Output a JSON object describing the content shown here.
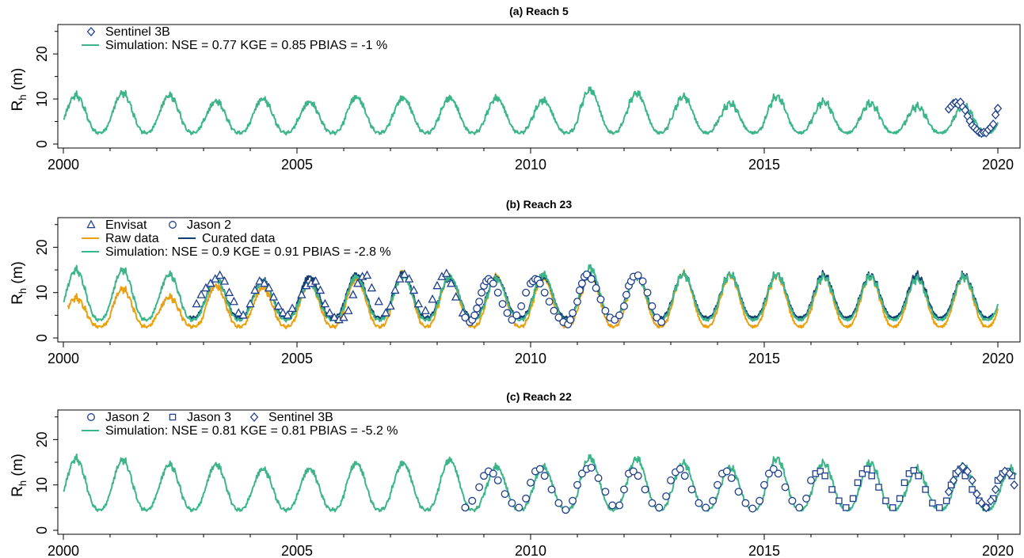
{
  "colors": {
    "simulation": "#3cb689",
    "raw": "#e9a10f",
    "curated": "#123f73",
    "marker": "#1e3f8c"
  },
  "chart_data": [
    {
      "type": "line",
      "title": "(a) Reach 5",
      "ylabel": "R",
      "ylabel_sub": "h",
      "ylabel_unit": " (m)",
      "xlim": [
        2000,
        2020.4
      ],
      "ylim": [
        0,
        26
      ],
      "xticks": [
        "2000",
        "2005",
        "2010",
        "2015",
        "2020"
      ],
      "yticks": [
        "0",
        "10",
        "20"
      ],
      "grid": false,
      "legend_position": "top-left",
      "legend": [
        {
          "label": "Sentinel 3B",
          "kind": "marker",
          "marker": "diamond"
        },
        {
          "label": "Simulation: NSE = 0.77  KGE = 0.85  PBIAS = -1 %",
          "kind": "line",
          "series": "simulation"
        }
      ],
      "series": [
        {
          "name": "Simulation",
          "kind": "line",
          "color": "simulation",
          "pattern": {
            "start": 2000.0,
            "end": 2020.0,
            "trough": 2.5,
            "peaks": [
              10.8,
              11.3,
              10.8,
              9.5,
              10.0,
              9.3,
              10.4,
              10.2,
              10.2,
              10.2,
              9.7,
              12.0,
              11.3,
              10.5,
              9.0,
              10.5,
              9.4,
              9.0,
              8.3,
              8.5
            ]
          }
        },
        {
          "name": "Sentinel 3B",
          "kind": "points",
          "marker": "diamond",
          "x": [
            2018.95,
            2019.0,
            2019.05,
            2019.1,
            2019.15,
            2019.2,
            2019.25,
            2019.3,
            2019.35,
            2019.4,
            2019.45,
            2019.5,
            2019.55,
            2019.6,
            2019.65,
            2019.7,
            2019.75,
            2019.8,
            2019.85,
            2019.9,
            2019.95,
            2020.0
          ],
          "y": [
            7.8,
            8.4,
            9.0,
            9.2,
            8.8,
            9.3,
            8.2,
            7.5,
            6.2,
            5.1,
            4.1,
            3.6,
            3.1,
            2.6,
            2.4,
            2.6,
            2.5,
            3.2,
            3.7,
            4.4,
            6.5,
            7.9
          ]
        }
      ]
    },
    {
      "type": "line",
      "title": "(b) Reach 23",
      "ylabel": "R",
      "ylabel_sub": "h",
      "ylabel_unit": " (m)",
      "xlim": [
        2000,
        2020.4
      ],
      "ylim": [
        0,
        26
      ],
      "xticks": [
        "2000",
        "2005",
        "2010",
        "2015",
        "2020"
      ],
      "yticks": [
        "0",
        "10",
        "20"
      ],
      "grid": false,
      "legend_position": "top-left",
      "legend": [
        {
          "label": "Envisat",
          "kind": "marker",
          "marker": "triangle"
        },
        {
          "label": "Jason 2",
          "kind": "marker",
          "marker": "circle"
        },
        {
          "label": "Raw data",
          "kind": "line",
          "series": "raw"
        },
        {
          "label": "Curated data",
          "kind": "line",
          "series": "curated"
        },
        {
          "label": "Simulation: NSE = 0.9  KGE = 0.91  PBIAS = -2.8 %",
          "kind": "line",
          "series": "simulation"
        }
      ],
      "series": [
        {
          "name": "Raw data",
          "kind": "line",
          "color": "raw",
          "pattern": {
            "start": 2000.1,
            "end": 2020.0,
            "trough": 2.5,
            "peaks": [
              8.8,
              10.8,
              9.0,
              11.5,
              11.0,
              12.0,
              13.0,
              14.5,
              13.5,
              13.5,
              13.3,
              13.8,
              13.8,
              14.2,
              13.8,
              13.8,
              13.5,
              13.5,
              13.5,
              13.5
            ]
          }
        },
        {
          "name": "Curated data",
          "kind": "line",
          "color": "curated",
          "pattern": {
            "start": 2002.7,
            "end": 2019.9,
            "trough": 4.5,
            "peaks": [
              13.5,
              13.0,
              12.8,
              13.5,
              14.0,
              14.2,
              13.2,
              13.2,
              13.6,
              13.8,
              13.8,
              14.0,
              14.0,
              14.0,
              14.0,
              13.8,
              13.8
            ]
          }
        },
        {
          "name": "Simulation",
          "kind": "line",
          "color": "simulation",
          "pattern": {
            "start": 2000.0,
            "end": 2020.0,
            "trough": 4.0,
            "peaks": [
              15.0,
              15.0,
              14.0,
              13.0,
              12.5,
              12.0,
              13.5,
              13.5,
              13.5,
              13.0,
              14.0,
              15.5,
              13.5,
              14.0,
              14.0,
              14.0,
              13.5,
              13.5,
              13.0,
              13.5
            ]
          }
        },
        {
          "name": "Envisat",
          "kind": "points",
          "marker": "triangle",
          "x": [
            2002.85,
            2002.95,
            2003.05,
            2003.15,
            2003.25,
            2003.35,
            2003.45,
            2003.55,
            2003.65,
            2003.75,
            2003.85,
            2004.0,
            2004.1,
            2004.2,
            2004.3,
            2004.4,
            2004.5,
            2004.6,
            2004.7,
            2004.8,
            2004.9,
            2005.1,
            2005.2,
            2005.3,
            2005.4,
            2005.5,
            2005.6,
            2005.7,
            2005.8,
            2005.9,
            2006.0,
            2006.1,
            2006.2,
            2006.3,
            2006.4,
            2006.5,
            2006.6,
            2006.75,
            2006.9,
            2007.0,
            2007.1,
            2007.2,
            2007.3,
            2007.4,
            2007.5,
            2007.6,
            2007.75,
            2007.9,
            2008.0,
            2008.1,
            2008.2,
            2008.3,
            2008.4,
            2008.55
          ],
          "y": [
            7.5,
            9.5,
            11.0,
            12.0,
            13.0,
            13.8,
            12.5,
            10.0,
            8.0,
            5.5,
            5.0,
            7.5,
            10.5,
            12.5,
            12.0,
            11.0,
            9.0,
            7.0,
            5.5,
            5.0,
            6.5,
            9.5,
            11.5,
            12.0,
            12.5,
            10.5,
            7.5,
            5.5,
            4.5,
            4.0,
            4.5,
            6.0,
            9.5,
            12.0,
            13.5,
            13.8,
            11.0,
            8.0,
            5.5,
            7.0,
            10.5,
            13.0,
            14.0,
            13.0,
            10.5,
            7.5,
            6.0,
            8.5,
            11.5,
            13.5,
            14.2,
            12.0,
            9.0,
            5.5
          ]
        },
        {
          "name": "Jason 2",
          "kind": "points",
          "marker": "circle",
          "x": [
            2008.6,
            2008.7,
            2008.75,
            2008.8,
            2008.85,
            2008.9,
            2008.95,
            2009.0,
            2009.05,
            2009.1,
            2009.15,
            2009.2,
            2009.3,
            2009.4,
            2009.5,
            2009.6,
            2009.7,
            2009.8,
            2009.9,
            2010.0,
            2010.05,
            2010.1,
            2010.15,
            2010.2,
            2010.3,
            2010.4,
            2010.5,
            2010.6,
            2010.7,
            2010.8,
            2010.85,
            2010.9,
            2011.0,
            2011.05,
            2011.1,
            2011.15,
            2011.2,
            2011.3,
            2011.4,
            2011.5,
            2011.6,
            2011.7,
            2011.8,
            2011.9,
            2012.0,
            2012.05,
            2012.1,
            2012.15,
            2012.2,
            2012.3,
            2012.4,
            2012.5,
            2012.6,
            2012.7,
            2012.8
          ],
          "y": [
            4.5,
            3.5,
            4.0,
            5.0,
            6.5,
            8.0,
            10.0,
            11.5,
            12.5,
            13.0,
            12.5,
            12.0,
            10.0,
            7.5,
            5.5,
            4.0,
            5.0,
            7.0,
            10.0,
            12.0,
            12.5,
            13.0,
            12.8,
            12.0,
            10.0,
            8.0,
            6.0,
            4.5,
            3.5,
            3.0,
            4.0,
            5.5,
            8.0,
            10.5,
            12.0,
            13.5,
            14.0,
            13.0,
            11.0,
            8.5,
            6.0,
            4.5,
            4.0,
            5.0,
            7.0,
            9.5,
            11.5,
            12.5,
            13.5,
            13.8,
            12.5,
            10.0,
            7.0,
            4.5,
            3.5
          ]
        }
      ]
    },
    {
      "type": "line",
      "title": "(c) Reach 22",
      "ylabel": "R",
      "ylabel_sub": "h",
      "ylabel_unit": " (m)",
      "xlim": [
        2000,
        2020.4
      ],
      "ylim": [
        0,
        26
      ],
      "xticks": [
        "2000",
        "2005",
        "2010",
        "2015",
        "2020"
      ],
      "yticks": [
        "0",
        "10",
        "20"
      ],
      "grid": false,
      "legend_position": "top-left",
      "legend": [
        {
          "label": "Jason 2",
          "kind": "marker",
          "marker": "circle"
        },
        {
          "label": "Jason 3",
          "kind": "marker",
          "marker": "square"
        },
        {
          "label": "Sentinel 3B",
          "kind": "marker",
          "marker": "diamond"
        },
        {
          "label": "Simulation: NSE = 0.81  KGE = 0.81  PBIAS = -5.2 %",
          "kind": "line",
          "series": "simulation"
        }
      ],
      "series": [
        {
          "name": "Simulation",
          "kind": "line",
          "color": "simulation",
          "pattern": {
            "start": 2000.0,
            "end": 2020.4,
            "trough": 4.5,
            "peaks": [
              15.8,
              15.5,
              14.5,
              14.5,
              13.5,
              13.5,
              14.8,
              14.8,
              15.5,
              14.0,
              14.0,
              16.0,
              15.8,
              14.8,
              13.8,
              15.8,
              14.8,
              14.8,
              13.5,
              14.0,
              13.5
            ]
          }
        },
        {
          "name": "Jason 2",
          "kind": "points",
          "marker": "circle",
          "x": [
            2008.6,
            2008.75,
            2008.9,
            2009.0,
            2009.1,
            2009.2,
            2009.3,
            2009.45,
            2009.6,
            2009.75,
            2009.9,
            2010.0,
            2010.1,
            2010.2,
            2010.3,
            2010.45,
            2010.6,
            2010.75,
            2010.9,
            2011.0,
            2011.1,
            2011.2,
            2011.3,
            2011.45,
            2011.6,
            2011.75,
            2011.9,
            2012.0,
            2012.1,
            2012.2,
            2012.3,
            2012.45,
            2012.6,
            2012.75,
            2012.9,
            2013.0,
            2013.1,
            2013.2,
            2013.3,
            2013.45,
            2013.6,
            2013.75,
            2013.9,
            2014.0,
            2014.1,
            2014.2,
            2014.3,
            2014.45,
            2014.6,
            2014.75,
            2014.9,
            2015.0,
            2015.1,
            2015.2,
            2015.3,
            2015.45,
            2015.6,
            2015.75,
            2015.9,
            2016.0
          ],
          "y": [
            5.0,
            6.5,
            9.5,
            12.0,
            13.0,
            12.5,
            11.0,
            8.0,
            6.0,
            5.0,
            7.0,
            10.5,
            13.0,
            13.5,
            12.0,
            9.0,
            6.0,
            4.5,
            6.5,
            10.0,
            12.5,
            13.5,
            13.8,
            11.5,
            8.5,
            5.5,
            5.5,
            9.0,
            12.5,
            13.0,
            12.0,
            9.0,
            6.0,
            5.0,
            7.5,
            11.0,
            12.8,
            13.5,
            12.0,
            9.0,
            6.0,
            5.0,
            6.5,
            10.0,
            12.5,
            13.0,
            11.5,
            8.5,
            6.0,
            4.8,
            6.5,
            10.0,
            12.5,
            13.5,
            12.5,
            9.5,
            6.5,
            5.0,
            7.0,
            11.0
          ]
        },
        {
          "name": "Jason 3",
          "kind": "points",
          "marker": "square",
          "x": [
            2016.1,
            2016.2,
            2016.3,
            2016.45,
            2016.6,
            2016.75,
            2016.9,
            2017.0,
            2017.1,
            2017.2,
            2017.3,
            2017.45,
            2017.6,
            2017.75,
            2017.9,
            2018.0,
            2018.1,
            2018.2,
            2018.3,
            2018.45,
            2018.6,
            2018.75,
            2018.9,
            2019.0,
            2019.1,
            2019.2,
            2019.3,
            2019.45,
            2019.6,
            2019.75,
            2019.9,
            2020.0,
            2020.1,
            2020.2,
            2020.3
          ],
          "y": [
            12.5,
            13.0,
            12.0,
            9.0,
            6.5,
            5.0,
            7.0,
            10.5,
            12.5,
            13.5,
            12.0,
            9.5,
            6.5,
            5.0,
            7.0,
            10.5,
            12.5,
            13.2,
            12.0,
            9.0,
            6.0,
            5.0,
            6.5,
            10.0,
            12.5,
            13.5,
            12.0,
            9.0,
            6.5,
            5.0,
            7.0,
            11.0,
            12.5,
            13.0,
            12.0
          ]
        },
        {
          "name": "Sentinel 3B",
          "kind": "points",
          "marker": "diamond",
          "x": [
            2018.95,
            2019.05,
            2019.15,
            2019.25,
            2019.35,
            2019.45,
            2019.55,
            2019.65,
            2019.75,
            2019.85,
            2019.95,
            2020.05,
            2020.15,
            2020.25,
            2020.35
          ],
          "y": [
            8.5,
            11.0,
            13.0,
            14.0,
            13.0,
            11.0,
            8.0,
            6.0,
            5.0,
            6.5,
            9.0,
            11.5,
            13.0,
            12.5,
            10.0
          ]
        }
      ]
    }
  ]
}
